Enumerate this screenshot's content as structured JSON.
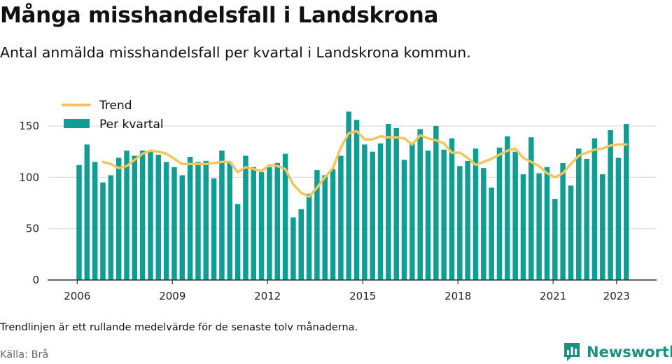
{
  "header": {
    "title": "Många misshandelsfall i Landskrona",
    "subtitle": "Antal anmälda misshandelsfall per kvartal i Landskrona kommun."
  },
  "footer": {
    "note": "Trendlinjen är ett rullande medelvärde för de senaste tolv månaderna.",
    "source": "Källa: Brå",
    "brand": "Newsworthy"
  },
  "colors": {
    "bar": "#0e9e93",
    "trend": "#f3c55a",
    "grid": "#dddddd",
    "axis": "#333333",
    "brand": "#1a8f82"
  },
  "chart_data": {
    "type": "bar",
    "start_year": 2006,
    "ylim": [
      0,
      170
    ],
    "yticks": [
      0,
      50,
      100,
      150
    ],
    "xticks": [
      2006,
      2009,
      2012,
      2015,
      2018,
      2021,
      2023
    ],
    "legend": {
      "placement": "top-left",
      "entries": [
        "Trend",
        "Per kvartal"
      ]
    },
    "series": [
      {
        "name": "Per kvartal",
        "type": "bar",
        "values": [
          112,
          132,
          115,
          95,
          102,
          119,
          126,
          121,
          126,
          126,
          122,
          115,
          110,
          102,
          120,
          115,
          116,
          99,
          126,
          115,
          74,
          121,
          110,
          105,
          110,
          114,
          123,
          61,
          69,
          84,
          107,
          102,
          108,
          121,
          164,
          156,
          132,
          125,
          133,
          152,
          148,
          117,
          133,
          147,
          126,
          150,
          127,
          138,
          111,
          116,
          128,
          109,
          90,
          129,
          140,
          125,
          103,
          139,
          104,
          110,
          79,
          114,
          92,
          128,
          118,
          138,
          103,
          146,
          119,
          152
        ]
      },
      {
        "name": "Trend",
        "type": "line",
        "values": [
          null,
          null,
          null,
          115,
          113,
          109,
          111,
          117,
          123,
          126,
          125,
          123,
          118,
          113,
          113,
          113,
          113,
          114,
          115,
          115,
          105,
          110,
          108,
          106,
          112,
          111,
          108,
          93,
          85,
          81,
          90,
          100,
          109,
          129,
          143,
          145,
          137,
          137,
          140,
          139,
          139,
          138,
          132,
          141,
          138,
          136,
          133,
          124,
          124,
          119,
          112,
          115,
          118,
          122,
          126,
          128,
          119,
          115,
          111,
          104,
          100,
          104,
          113,
          121,
          124,
          127,
          128,
          131,
          132,
          132
        ]
      }
    ]
  }
}
